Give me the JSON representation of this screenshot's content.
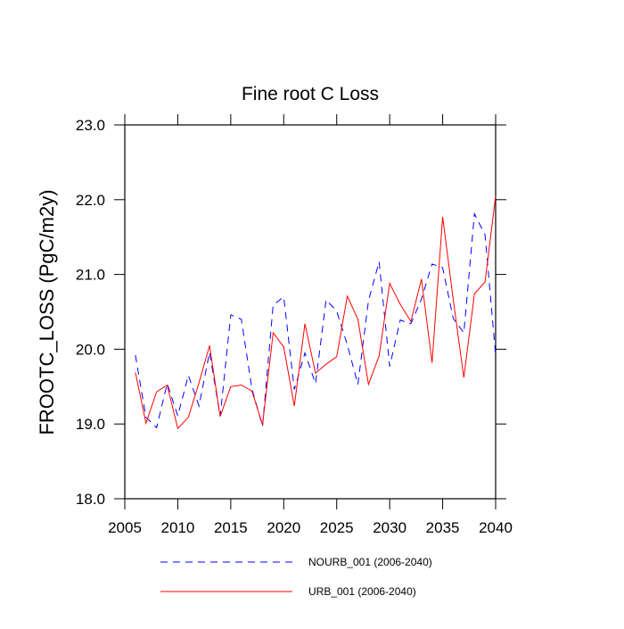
{
  "chart_data": {
    "type": "line",
    "title": "Fine root C Loss",
    "y_label": "FROOTC_LOSS  (PgC/m2y)",
    "x": [
      2006,
      2007,
      2008,
      2009,
      2010,
      2011,
      2012,
      2013,
      2014,
      2015,
      2016,
      2017,
      2018,
      2019,
      2020,
      2021,
      2022,
      2023,
      2024,
      2025,
      2026,
      2027,
      2028,
      2029,
      2030,
      2031,
      2032,
      2033,
      2034,
      2035,
      2036,
      2037,
      2038,
      2039,
      2040
    ],
    "series": [
      {
        "name": "NOURB_001 (2006-2040)",
        "color": "#0000ff",
        "dash": true,
        "values": [
          19.92,
          19.09,
          18.95,
          19.54,
          19.11,
          19.65,
          19.24,
          19.96,
          19.1,
          20.46,
          20.4,
          19.47,
          18.97,
          20.59,
          20.7,
          19.46,
          19.95,
          19.54,
          20.66,
          20.51,
          20.06,
          19.53,
          20.65,
          21.17,
          19.77,
          20.39,
          20.34,
          20.67,
          21.14,
          21.09,
          20.41,
          20.22,
          21.81,
          21.53,
          19.92
        ]
      },
      {
        "name": "URB_001 (2006-2040)",
        "color": "#ff0000",
        "dash": false,
        "values": [
          19.69,
          19.01,
          19.43,
          19.52,
          18.94,
          19.09,
          19.55,
          20.05,
          19.1,
          19.5,
          19.52,
          19.44,
          18.99,
          20.22,
          20.03,
          19.24,
          20.34,
          19.68,
          19.8,
          19.9,
          20.71,
          20.4,
          19.53,
          19.91,
          20.88,
          20.6,
          20.37,
          20.94,
          19.82,
          21.77,
          20.66,
          19.62,
          20.74,
          20.9,
          22.05
        ]
      }
    ],
    "xlim": [
      2005,
      2040
    ],
    "xticks": [
      2005,
      2010,
      2015,
      2020,
      2025,
      2030,
      2035,
      2040
    ],
    "ylim": [
      18,
      23
    ],
    "yticks": [
      {
        "value": 18,
        "label": "18.0"
      },
      {
        "value": 19,
        "label": "19.0"
      },
      {
        "value": 20,
        "label": "20.0"
      },
      {
        "value": 21,
        "label": "21.0"
      },
      {
        "value": 22,
        "label": "22.0"
      },
      {
        "value": 23,
        "label": "23.0"
      }
    ]
  }
}
